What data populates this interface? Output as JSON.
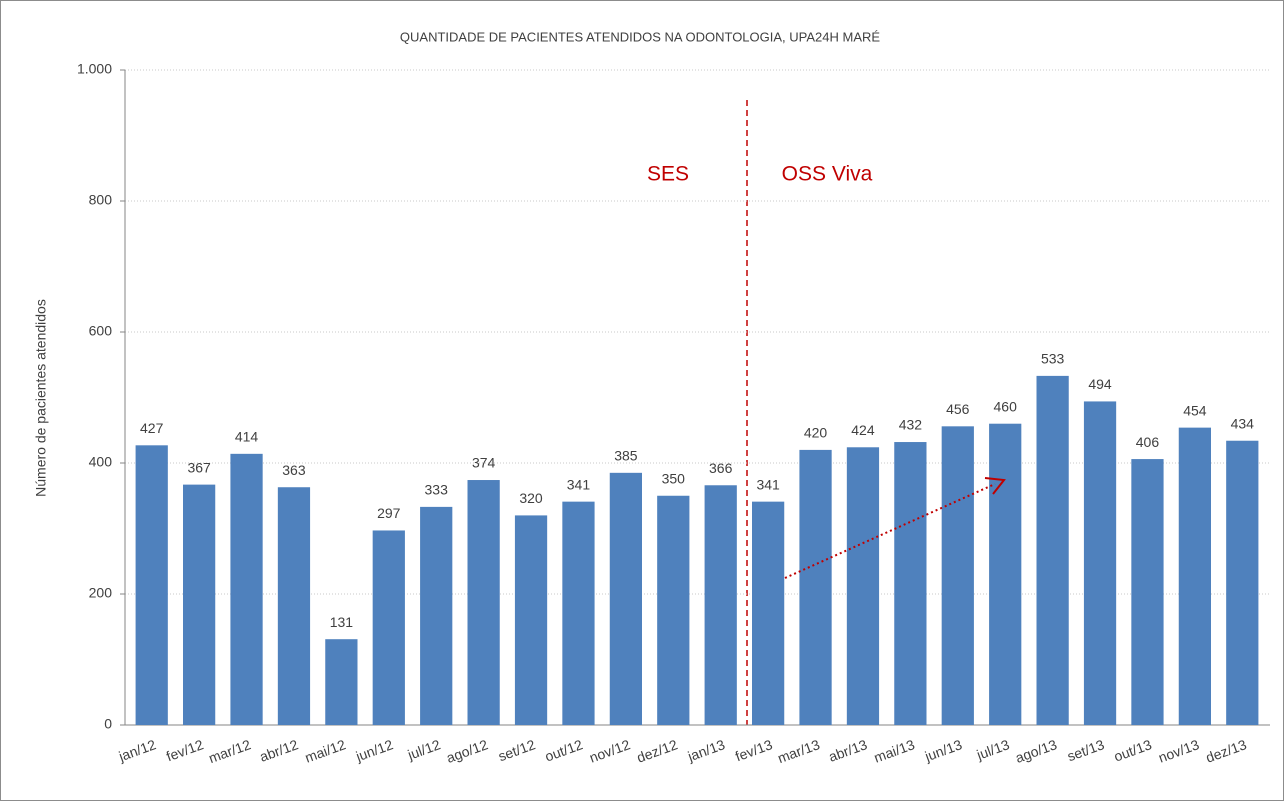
{
  "chart_data": {
    "type": "bar",
    "title": "QUANTIDADE DE PACIENTES ATENDIDOS NA ODONTOLOGIA, UPA24H MARÉ",
    "y_label": "Número de pacientes atendidos",
    "annotations": [
      "SES",
      "OSS Viva"
    ],
    "categories": [
      "jan/12",
      "fev/12",
      "mar/12",
      "abr/12",
      "mai/12",
      "jun/12",
      "jul/12",
      "ago/12",
      "set/12",
      "out/12",
      "nov/12",
      "dez/12",
      "jan/13",
      "fev/13",
      "mar/13",
      "abr/13",
      "mai/13",
      "jun/13",
      "jul/13",
      "ago/13",
      "set/13",
      "out/13",
      "nov/13",
      "dez/13"
    ],
    "values": [
      427,
      367,
      414,
      363,
      131,
      297,
      333,
      374,
      320,
      341,
      385,
      350,
      366,
      341,
      420,
      424,
      432,
      456,
      460,
      533,
      494,
      406,
      454,
      434
    ],
    "color": "#4f81bd",
    "ylim": [
      0,
      1000
    ],
    "yticks": [
      0,
      200,
      400,
      600,
      800,
      {
        "value": 1000,
        "label": "1.000"
      }
    ],
    "grid": true
  }
}
